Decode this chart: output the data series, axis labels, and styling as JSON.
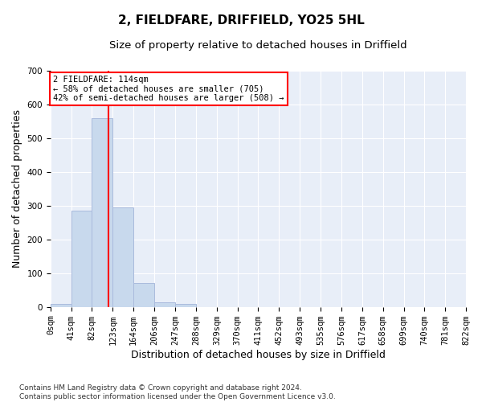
{
  "title_line1": "2, FIELDFARE, DRIFFIELD, YO25 5HL",
  "title_line2": "Size of property relative to detached houses in Driffield",
  "xlabel": "Distribution of detached houses by size in Driffield",
  "ylabel": "Number of detached properties",
  "footnote": "Contains HM Land Registry data © Crown copyright and database right 2024.\nContains public sector information licensed under the Open Government Licence v3.0.",
  "bin_edges": [
    0,
    41,
    82,
    123,
    164,
    206,
    247,
    288,
    329,
    370,
    411,
    452,
    493,
    535,
    576,
    617,
    658,
    699,
    740,
    781,
    822
  ],
  "bin_labels": [
    "0sqm",
    "41sqm",
    "82sqm",
    "123sqm",
    "164sqm",
    "206sqm",
    "247sqm",
    "288sqm",
    "329sqm",
    "370sqm",
    "411sqm",
    "452sqm",
    "493sqm",
    "535sqm",
    "576sqm",
    "617sqm",
    "658sqm",
    "699sqm",
    "740sqm",
    "781sqm",
    "822sqm"
  ],
  "bar_heights": [
    8,
    285,
    560,
    295,
    70,
    14,
    10,
    0,
    0,
    0,
    0,
    0,
    0,
    0,
    0,
    0,
    0,
    0,
    0,
    0
  ],
  "bar_color": "#c8d9ed",
  "bar_edge_color": "#aabbdd",
  "property_line_x": 114,
  "property_line_color": "red",
  "annotation_text": "2 FIELDFARE: 114sqm\n← 58% of detached houses are smaller (705)\n42% of semi-detached houses are larger (508) →",
  "annotation_box_color": "white",
  "annotation_box_edge_color": "red",
  "ylim": [
    0,
    700
  ],
  "yticks": [
    0,
    100,
    200,
    300,
    400,
    500,
    600,
    700
  ],
  "background_color": "#e8eef8",
  "grid_color": "#ffffff",
  "title_fontsize": 11,
  "subtitle_fontsize": 9.5,
  "axis_label_fontsize": 9,
  "tick_fontsize": 7.5,
  "footnote_fontsize": 6.5
}
